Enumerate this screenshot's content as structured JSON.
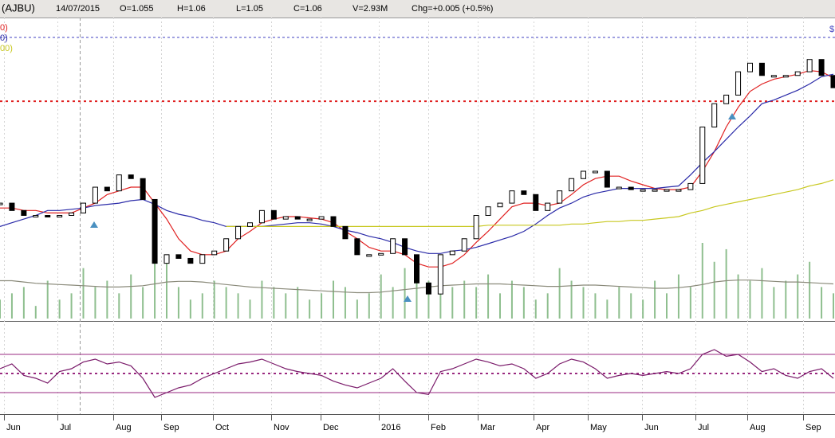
{
  "header": {
    "symbol": "(AJBU)",
    "date": "14/07/2015",
    "open": "O=1.055",
    "high": "H=1.06",
    "low": "L=1.05",
    "close": "C=1.06",
    "volume": "V=2.93M",
    "change": "Chg=+0.005 (+0.5%)"
  },
  "chart_data": {
    "type": "stock",
    "x_labels": [
      "Jun",
      "Jul",
      "Aug",
      "Sep",
      "Oct",
      "Nov",
      "Dec",
      "2016",
      "Feb",
      "Mar",
      "Apr",
      "May",
      "Jun",
      "Jul",
      "Aug",
      "Sep"
    ],
    "corner_label": "$",
    "price": {
      "ylim": [
        0.96,
        1.2
      ],
      "values": [
        1.054,
        1.048,
        1.044,
        1.044,
        1.043,
        1.044,
        1.046,
        1.054,
        1.067,
        1.064,
        1.077,
        1.074,
        1.057,
        1.005,
        1.012,
        1.009,
        1.005,
        1.012,
        1.015,
        1.025,
        1.035,
        1.038,
        1.048,
        1.041,
        1.043,
        1.041,
        1.041,
        1.043,
        1.035,
        1.025,
        1.012,
        1.012,
        1.013,
        1.025,
        1.012,
        0.989,
        0.98,
        1.012,
        1.015,
        1.025,
        1.044,
        1.051,
        1.054,
        1.064,
        1.061,
        1.048,
        1.054,
        1.064,
        1.074,
        1.08,
        1.08,
        1.067,
        1.067,
        1.065,
        1.065,
        1.065,
        1.065,
        1.065,
        1.07,
        1.116,
        1.135,
        1.142,
        1.161,
        1.168,
        1.158,
        1.158,
        1.158,
        1.161,
        1.171,
        1.158,
        1.148
      ]
    },
    "series": [
      {
        "name": "0)",
        "color": "#e02020",
        "values": [
          1.05,
          1.05,
          1.048,
          1.048,
          1.046,
          1.046,
          1.046,
          1.05,
          1.054,
          1.061,
          1.064,
          1.067,
          1.067,
          1.054,
          1.041,
          1.025,
          1.015,
          1.012,
          1.012,
          1.015,
          1.025,
          1.031,
          1.038,
          1.041,
          1.043,
          1.043,
          1.042,
          1.041,
          1.038,
          1.031,
          1.025,
          1.018,
          1.015,
          1.015,
          1.012,
          1.005,
          1.002,
          1.002,
          1.005,
          1.012,
          1.022,
          1.031,
          1.041,
          1.051,
          1.054,
          1.054,
          1.052,
          1.054,
          1.061,
          1.069,
          1.074,
          1.076,
          1.076,
          1.072,
          1.069,
          1.066,
          1.065,
          1.065,
          1.067,
          1.08,
          1.096,
          1.116,
          1.132,
          1.145,
          1.151,
          1.155,
          1.157,
          1.159,
          1.162,
          1.161,
          1.156
        ]
      },
      {
        "name": "0)",
        "color": "#2a2aa8",
        "values": [
          1.035,
          1.038,
          1.041,
          1.044,
          1.048,
          1.048,
          1.049,
          1.05,
          1.052,
          1.053,
          1.054,
          1.056,
          1.057,
          1.053,
          1.048,
          1.045,
          1.043,
          1.04,
          1.038,
          1.035,
          1.035,
          1.035,
          1.035,
          1.036,
          1.037,
          1.038,
          1.038,
          1.037,
          1.035,
          1.032,
          1.03,
          1.027,
          1.025,
          1.022,
          1.018,
          1.015,
          1.013,
          1.013,
          1.015,
          1.016,
          1.018,
          1.021,
          1.024,
          1.027,
          1.031,
          1.037,
          1.044,
          1.05,
          1.054,
          1.059,
          1.062,
          1.064,
          1.066,
          1.066,
          1.066,
          1.066,
          1.067,
          1.068,
          1.077,
          1.087,
          1.096,
          1.106,
          1.116,
          1.125,
          1.135,
          1.138,
          1.142,
          1.146,
          1.151,
          1.157,
          1.159
        ]
      },
      {
        "name": "00)",
        "color": "#c8c820",
        "values": [
          null,
          null,
          null,
          null,
          null,
          null,
          null,
          null,
          null,
          null,
          null,
          null,
          null,
          null,
          null,
          null,
          null,
          null,
          null,
          1.035,
          1.035,
          1.035,
          1.035,
          1.035,
          1.035,
          1.035,
          1.035,
          1.035,
          1.035,
          1.035,
          1.035,
          1.035,
          1.035,
          1.035,
          1.035,
          1.035,
          1.035,
          1.035,
          1.035,
          1.035,
          1.035,
          1.036,
          1.036,
          1.036,
          1.036,
          1.036,
          1.036,
          1.036,
          1.037,
          1.037,
          1.038,
          1.039,
          1.039,
          1.04,
          1.04,
          1.041,
          1.042,
          1.043,
          1.046,
          1.048,
          1.051,
          1.053,
          1.055,
          1.057,
          1.059,
          1.061,
          1.063,
          1.065,
          1.068,
          1.07,
          1.073
        ]
      }
    ],
    "level_lines": [
      {
        "value": 1.189,
        "color": "#4040c0"
      },
      {
        "value": 1.137,
        "color": "#e02020"
      }
    ],
    "volume": {
      "ylim": [
        0,
        48
      ],
      "color": "#8fbf8f",
      "values": [
        3,
        4,
        5,
        2,
        6,
        3,
        4,
        8,
        5,
        6,
        4,
        7,
        5,
        12,
        9,
        5,
        3,
        4,
        6,
        5,
        4,
        3,
        6,
        5,
        4,
        5,
        3,
        4,
        6,
        5,
        3,
        4,
        7,
        5,
        8,
        9,
        6,
        4,
        5,
        6,
        5,
        7,
        4,
        6,
        5,
        3,
        4,
        8,
        6,
        5,
        4,
        3,
        5,
        4,
        3,
        6,
        4,
        7,
        5,
        12,
        9,
        11,
        7,
        6,
        8,
        5,
        6,
        7,
        9,
        5,
        4
      ],
      "ma": {
        "color": "#8a8a7a",
        "values": [
          6,
          6,
          5.8,
          5.6,
          5.5,
          5.4,
          5.3,
          5.2,
          5.1,
          5.0,
          5.0,
          5.1,
          5.2,
          5.5,
          5.8,
          5.9,
          5.9,
          5.8,
          5.6,
          5.4,
          5.2,
          5.0,
          4.9,
          4.8,
          4.7,
          4.6,
          4.5,
          4.4,
          4.3,
          4.2,
          4.1,
          4.1,
          4.2,
          4.4,
          4.6,
          4.8,
          5.0,
          5.2,
          5.3,
          5.4,
          5.5,
          5.5,
          5.5,
          5.4,
          5.3,
          5.2,
          5.1,
          5.1,
          5.2,
          5.3,
          5.3,
          5.2,
          5.1,
          5.0,
          4.9,
          4.8,
          4.8,
          4.9,
          5.1,
          5.4,
          5.8,
          6.0,
          6.1,
          6.1,
          6.0,
          5.9,
          5.8,
          5.8,
          5.7,
          5.6,
          5.5
        ]
      }
    },
    "rsi": {
      "ylim": [
        0,
        100
      ],
      "color": "#7a1a6a",
      "levels": [
        30,
        50,
        70
      ],
      "level_color": "#9a2a80",
      "values": [
        55,
        60,
        48,
        45,
        40,
        52,
        55,
        62,
        65,
        60,
        62,
        58,
        45,
        25,
        30,
        35,
        38,
        45,
        50,
        55,
        60,
        62,
        65,
        60,
        55,
        52,
        50,
        48,
        42,
        38,
        35,
        40,
        45,
        55,
        42,
        30,
        28,
        52,
        55,
        60,
        65,
        62,
        58,
        60,
        55,
        45,
        50,
        60,
        65,
        62,
        55,
        45,
        48,
        50,
        48,
        50,
        52,
        50,
        55,
        70,
        75,
        68,
        70,
        62,
        52,
        55,
        48,
        45,
        52,
        55,
        45
      ]
    }
  }
}
